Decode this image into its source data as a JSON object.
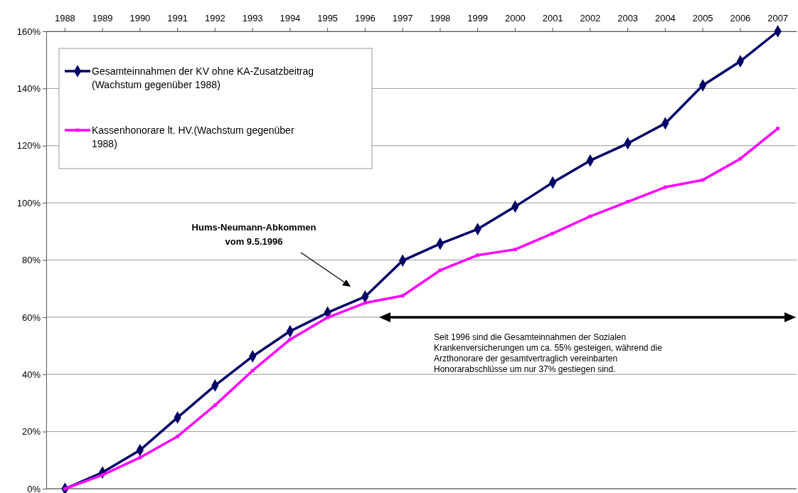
{
  "chart_data": {
    "type": "line",
    "categories": [
      "1988",
      "1989",
      "1990",
      "1991",
      "1992",
      "1993",
      "1994",
      "1995",
      "1996",
      "1997",
      "1998",
      "1999",
      "2000",
      "2001",
      "2002",
      "2003",
      "2004",
      "2005",
      "2006",
      "2007"
    ],
    "series": [
      {
        "name": "Gesamteinnahmen der KV ohne KA-Zusatzbeitrag\n(Wachstum gegenüber 1988)",
        "color": "#000066",
        "marker": "diamond",
        "values": [
          0,
          5.7,
          13.5,
          24.9,
          36.1,
          46.3,
          55.1,
          61.6,
          67.2,
          79.8,
          85.7,
          90.8,
          98.7,
          107.1,
          114.8,
          120.8,
          127.8,
          141.1,
          149.5,
          160
        ]
      },
      {
        "name": "Kassenhonorare lt. HV.(Wachstum gegenüber\n1988)",
        "color": "#ff00ff",
        "marker": "square",
        "values": [
          0,
          4.8,
          10.9,
          18.3,
          29.2,
          41.3,
          52.2,
          59.9,
          65.0,
          67.5,
          76.4,
          81.7,
          83.7,
          89.3,
          95.3,
          100.4,
          105.5,
          108.0,
          115.4,
          126.0
        ]
      }
    ],
    "ylim": [
      0,
      160
    ],
    "yticks": [
      {
        "value": 0,
        "label": "0%"
      },
      {
        "value": 20,
        "label": "20%"
      },
      {
        "value": 40,
        "label": "40%"
      },
      {
        "value": 60,
        "label": "60%"
      },
      {
        "value": 80,
        "label": "80%"
      },
      {
        "value": 100,
        "label": "100%"
      },
      {
        "value": 120,
        "label": "120%"
      },
      {
        "value": 140,
        "label": "140%"
      },
      {
        "value": 160,
        "label": "160%"
      }
    ],
    "grid": "y",
    "legend": "top left",
    "line_style": "solid",
    "annotations": [
      "Hums-Neumann-Abkommen\nvom 9.5.1996",
      "Seit 1996 sind die Gesamteinnahmen der Sozialen\nKrankenversicherungen um ca. 55% gesteigen, während die\nArzthonorare der gesamtvertraglich vereinbarten\nHonorarabschlüsse um nur 37% gestiegen sind."
    ]
  }
}
